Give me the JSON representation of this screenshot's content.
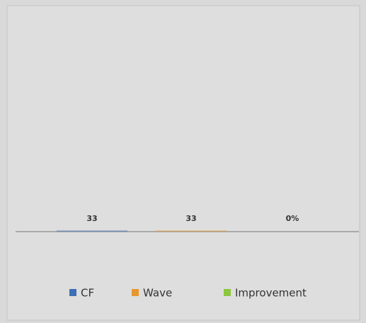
{
  "chart_data": {
    "type": "bar",
    "series": [
      {
        "name": "CF",
        "color": "#3b6fb6",
        "values": [
          33
        ],
        "value_labels": [
          "33"
        ]
      },
      {
        "name": "Wave",
        "color": "#e8962e",
        "values": [
          33
        ],
        "value_labels": [
          "33"
        ]
      },
      {
        "name": "Improvement",
        "color": "#8dc63f",
        "values": [
          0
        ],
        "value_labels": [
          "0%"
        ]
      }
    ]
  }
}
